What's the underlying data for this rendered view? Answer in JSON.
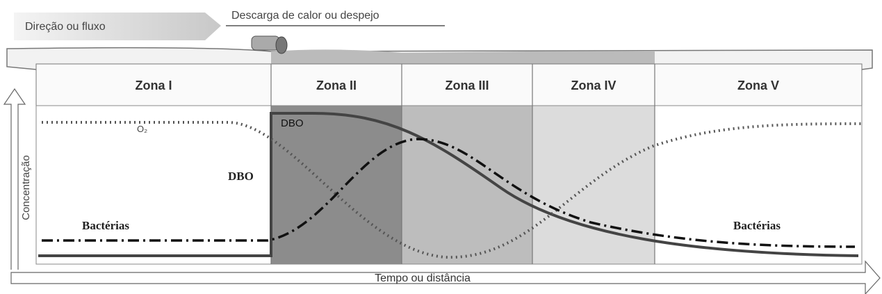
{
  "header": {
    "flow_label": "Direção ou fluxo",
    "discharge_label": "Descarga de calor ou despejo"
  },
  "zones": [
    "Zona I",
    "Zona II",
    "Zona III",
    "Zona IV",
    "Zona V"
  ],
  "axes": {
    "y_label": "Concentração",
    "x_label": "Tempo ou distância"
  },
  "curves": {
    "o2_label": "O₂",
    "dbo_label_left": "DBO",
    "dbo_label_top": "DBO",
    "bacteria_label_left": "Bactérias",
    "bacteria_label_right": "Bactérias"
  }
}
